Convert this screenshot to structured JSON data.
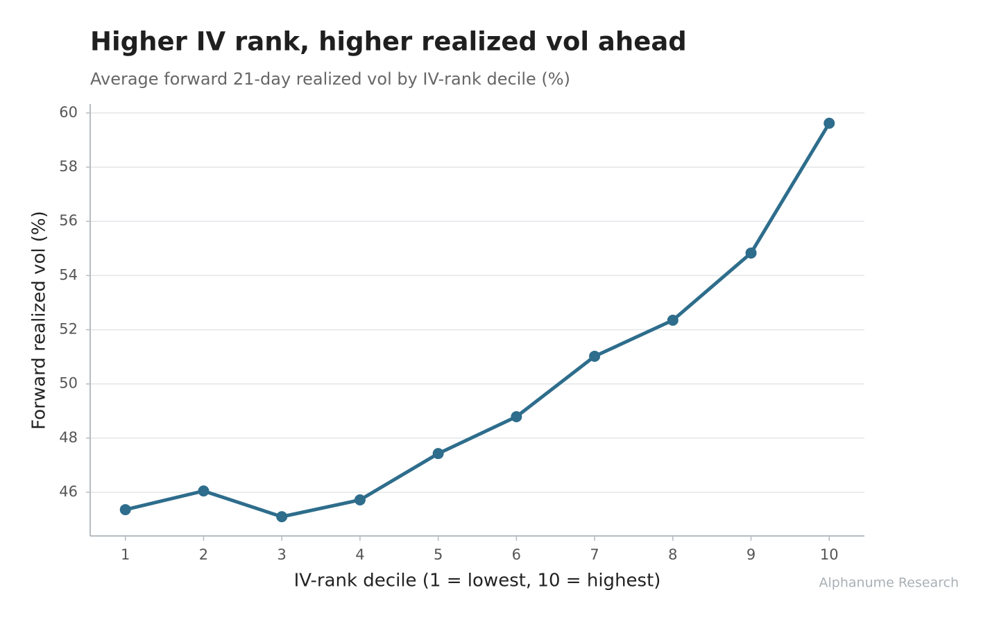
{
  "chart_data": {
    "type": "line",
    "title": "Higher IV rank, higher realized vol ahead",
    "subtitle": "Average forward 21-day realized vol by IV-rank decile (%)",
    "x_label": "IV-rank decile (1 = lowest, 10 = highest)",
    "y_label": "Forward realized vol (%)",
    "source": "Alphanume Research",
    "x": [
      1,
      2,
      3,
      4,
      5,
      6,
      7,
      8,
      9,
      10
    ],
    "series": [
      {
        "name": "Forward realized vol",
        "color": "#2e6d8c",
        "values": [
          45.36,
          46.05,
          45.1,
          45.72,
          47.43,
          48.79,
          51.02,
          52.35,
          54.83,
          59.62
        ]
      }
    ],
    "xlim": [
      0.55,
      10.45
    ],
    "xticks": [
      1,
      2,
      3,
      4,
      5,
      6,
      7,
      8,
      9,
      10
    ],
    "ylim": [
      44.39,
      60.33
    ],
    "yticks": [
      46,
      48,
      50,
      52,
      54,
      56,
      58,
      60
    ],
    "grid": true
  }
}
